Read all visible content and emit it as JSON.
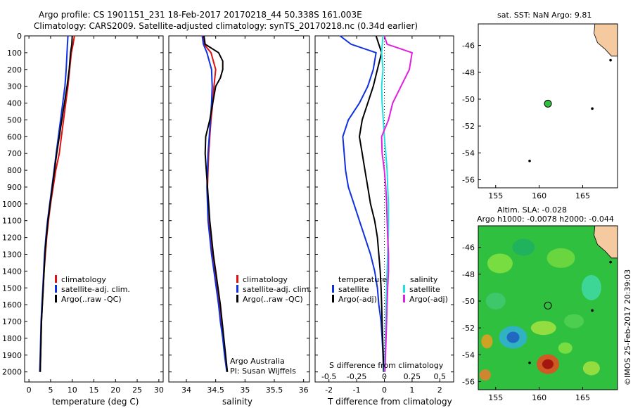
{
  "header": {
    "line1": "Argo profile: CS 1901151_231 18-Feb-2017 20170218_44 50.338S 161.003E",
    "line2": "Climatology: CARS2009. Satellite-adjusted climatology: synTS_20170218.nc (0.34d earlier)"
  },
  "colors": {
    "climatology": "#e01010",
    "satellite": "#1030e0",
    "argo": "#000000",
    "salinity_sat": "#20e0e0",
    "salinity_argo": "#e020e0",
    "land": "#f6caa0",
    "ocean_green": "#30c040"
  },
  "depth_axis": {
    "ticks": [
      "0",
      "100",
      "200",
      "300",
      "400",
      "500",
      "600",
      "700",
      "800",
      "900",
      "1000",
      "1100",
      "1200",
      "1300",
      "1400",
      "1500",
      "1600",
      "1700",
      "1800",
      "1900",
      "2000"
    ]
  },
  "chart_data": [
    {
      "type": "line",
      "xlabel": "temperature (deg C)",
      "xlim": [
        -1,
        31
      ],
      "ylim": [
        2060,
        0
      ],
      "xticks": [
        "0",
        "5",
        "10",
        "15",
        "20",
        "25",
        "30"
      ],
      "xtick_values": [
        0,
        5,
        10,
        15,
        20,
        25,
        30
      ],
      "legend": {
        "placement": "lower-middle",
        "entries": [
          "climatology",
          "satellite-adj. clim.",
          "Argo(..raw -QC)"
        ]
      },
      "series": [
        {
          "name": "climatology",
          "color": "#e01010",
          "points": [
            [
              10.5,
              0
            ],
            [
              10.2,
              50
            ],
            [
              9.8,
              100
            ],
            [
              9.4,
              200
            ],
            [
              9.0,
              300
            ],
            [
              8.5,
              400
            ],
            [
              8.0,
              500
            ],
            [
              7.5,
              600
            ],
            [
              7.0,
              700
            ],
            [
              6.2,
              800
            ],
            [
              5.6,
              900
            ],
            [
              5.0,
              1000
            ],
            [
              4.5,
              1100
            ],
            [
              4.1,
              1200
            ],
            [
              3.8,
              1300
            ],
            [
              3.5,
              1400
            ],
            [
              3.3,
              1500
            ],
            [
              3.1,
              1600
            ],
            [
              2.9,
              1700
            ],
            [
              2.8,
              1800
            ],
            [
              2.7,
              1900
            ],
            [
              2.6,
              2000
            ]
          ]
        },
        {
          "name": "satellite-adj. clim.",
          "color": "#1030e0",
          "points": [
            [
              9.0,
              0
            ],
            [
              8.9,
              50
            ],
            [
              8.8,
              100
            ],
            [
              8.6,
              200
            ],
            [
              8.3,
              300
            ],
            [
              7.8,
              400
            ],
            [
              7.3,
              500
            ],
            [
              6.8,
              600
            ],
            [
              6.3,
              700
            ],
            [
              5.8,
              800
            ],
            [
              5.3,
              900
            ],
            [
              4.8,
              1000
            ],
            [
              4.3,
              1100
            ],
            [
              3.9,
              1200
            ],
            [
              3.6,
              1300
            ],
            [
              3.4,
              1400
            ],
            [
              3.2,
              1500
            ],
            [
              3.0,
              1600
            ],
            [
              2.8,
              1700
            ],
            [
              2.7,
              1800
            ],
            [
              2.6,
              1900
            ],
            [
              2.5,
              2000
            ]
          ]
        },
        {
          "name": "Argo(..raw -QC)",
          "color": "#000000",
          "points": [
            [
              10.0,
              0
            ],
            [
              9.9,
              50
            ],
            [
              9.6,
              100
            ],
            [
              9.3,
              200
            ],
            [
              8.8,
              300
            ],
            [
              8.2,
              400
            ],
            [
              7.6,
              500
            ],
            [
              7.0,
              600
            ],
            [
              6.4,
              700
            ],
            [
              5.9,
              800
            ],
            [
              5.4,
              900
            ],
            [
              4.9,
              1000
            ],
            [
              4.4,
              1100
            ],
            [
              4.0,
              1200
            ],
            [
              3.7,
              1300
            ],
            [
              3.5,
              1400
            ],
            [
              3.3,
              1500
            ],
            [
              3.1,
              1600
            ],
            [
              2.9,
              1700
            ],
            [
              2.8,
              1800
            ],
            [
              2.7,
              1900
            ],
            [
              2.6,
              2000
            ]
          ]
        }
      ]
    },
    {
      "type": "line",
      "xlabel": "salinity",
      "xlim": [
        33.7,
        36.1
      ],
      "ylim": [
        2060,
        0
      ],
      "xticks": [
        "34",
        "34.5",
        "35",
        "35.5",
        "36"
      ],
      "xtick_values": [
        34,
        34.5,
        35,
        35.5,
        36
      ],
      "legend": {
        "placement": "lower-middle",
        "entries": [
          "climatology",
          "satellite-adj. clim.",
          "Argo(..raw -QC)"
        ]
      },
      "annotations": [
        "Argo Australia",
        "PI: Susan Wijffels"
      ],
      "series": [
        {
          "name": "climatology",
          "color": "#e01010",
          "points": [
            [
              34.29,
              0
            ],
            [
              34.3,
              50
            ],
            [
              34.42,
              100
            ],
            [
              34.5,
              200
            ],
            [
              34.47,
              300
            ],
            [
              34.45,
              400
            ],
            [
              34.42,
              500
            ],
            [
              34.4,
              600
            ],
            [
              34.38,
              700
            ],
            [
              34.37,
              800
            ],
            [
              34.36,
              900
            ],
            [
              34.37,
              1000
            ],
            [
              34.39,
              1100
            ],
            [
              34.42,
              1200
            ],
            [
              34.45,
              1300
            ],
            [
              34.49,
              1400
            ],
            [
              34.53,
              1500
            ],
            [
              34.57,
              1600
            ],
            [
              34.6,
              1700
            ],
            [
              34.63,
              1800
            ],
            [
              34.66,
              1900
            ],
            [
              34.7,
              2000
            ]
          ]
        },
        {
          "name": "satellite-adj. clim.",
          "color": "#1030e0",
          "points": [
            [
              34.27,
              0
            ],
            [
              34.29,
              50
            ],
            [
              34.35,
              100
            ],
            [
              34.43,
              200
            ],
            [
              34.44,
              300
            ],
            [
              34.43,
              400
            ],
            [
              34.41,
              500
            ],
            [
              34.39,
              600
            ],
            [
              34.37,
              700
            ],
            [
              34.36,
              800
            ],
            [
              34.35,
              900
            ],
            [
              34.36,
              1000
            ],
            [
              34.37,
              1100
            ],
            [
              34.4,
              1200
            ],
            [
              34.43,
              1300
            ],
            [
              34.47,
              1400
            ],
            [
              34.51,
              1500
            ],
            [
              34.55,
              1600
            ],
            [
              34.58,
              1700
            ],
            [
              34.62,
              1800
            ],
            [
              34.65,
              1900
            ],
            [
              34.69,
              2000
            ]
          ]
        },
        {
          "name": "Argo(..raw -QC)",
          "color": "#000000",
          "points": [
            [
              34.3,
              0
            ],
            [
              34.32,
              50
            ],
            [
              34.55,
              100
            ],
            [
              34.62,
              150
            ],
            [
              34.62,
              200
            ],
            [
              34.58,
              250
            ],
            [
              34.5,
              300
            ],
            [
              34.45,
              400
            ],
            [
              34.4,
              500
            ],
            [
              34.33,
              600
            ],
            [
              34.32,
              700
            ],
            [
              34.34,
              800
            ],
            [
              34.36,
              900
            ],
            [
              34.38,
              1000
            ],
            [
              34.4,
              1100
            ],
            [
              34.43,
              1200
            ],
            [
              34.46,
              1300
            ],
            [
              34.5,
              1400
            ],
            [
              34.54,
              1500
            ],
            [
              34.58,
              1600
            ],
            [
              34.61,
              1700
            ],
            [
              34.64,
              1800
            ],
            [
              34.67,
              1900
            ],
            [
              34.7,
              2000
            ]
          ]
        }
      ]
    },
    {
      "type": "line",
      "xlabel": "T difference from climatology",
      "xlabel_top": "S difference from climatology",
      "xlim": [
        -2.5,
        2.5
      ],
      "ylim": [
        2060,
        0
      ],
      "xticks": [
        "-2",
        "-1",
        "0",
        "1",
        "2"
      ],
      "xtick_values": [
        -2,
        -1,
        0,
        1,
        2
      ],
      "xticks_top": [
        "-0.5",
        "-0.25",
        "0",
        "0.25",
        "0.5"
      ],
      "xtick_top_values": [
        -0.5,
        -0.25,
        0,
        0.25,
        0.5
      ],
      "legend": {
        "placement": "lower-middle",
        "groups": [
          {
            "heading": "temperature",
            "entries": [
              "satellite",
              "Argo(-adj)"
            ]
          },
          {
            "heading": "salinity",
            "entries": [
              "satellite",
              "Argo(-adj)"
            ]
          }
        ]
      },
      "series": [
        {
          "name": "temperature satellite",
          "color": "#1030e0",
          "points": [
            [
              -1.6,
              0
            ],
            [
              -1.2,
              50
            ],
            [
              -0.3,
              100
            ],
            [
              -0.4,
              200
            ],
            [
              -0.6,
              300
            ],
            [
              -0.9,
              400
            ],
            [
              -1.3,
              500
            ],
            [
              -1.5,
              600
            ],
            [
              -1.45,
              700
            ],
            [
              -1.4,
              800
            ],
            [
              -1.3,
              900
            ],
            [
              -1.1,
              1000
            ],
            [
              -0.9,
              1100
            ],
            [
              -0.7,
              1200
            ],
            [
              -0.5,
              1300
            ],
            [
              -0.35,
              1400
            ],
            [
              -0.25,
              1500
            ],
            [
              -0.2,
              1600
            ],
            [
              -0.12,
              1700
            ],
            [
              -0.08,
              1800
            ],
            [
              -0.05,
              1900
            ],
            [
              -0.03,
              2000
            ]
          ]
        },
        {
          "name": "temperature Argo(-adj)",
          "color": "#000000",
          "points": [
            [
              -0.3,
              0
            ],
            [
              -0.2,
              50
            ],
            [
              -0.1,
              100
            ],
            [
              -0.25,
              200
            ],
            [
              -0.4,
              300
            ],
            [
              -0.6,
              400
            ],
            [
              -0.8,
              500
            ],
            [
              -0.9,
              600
            ],
            [
              -0.8,
              700
            ],
            [
              -0.7,
              800
            ],
            [
              -0.6,
              900
            ],
            [
              -0.5,
              1000
            ],
            [
              -0.35,
              1100
            ],
            [
              -0.25,
              1200
            ],
            [
              -0.2,
              1300
            ],
            [
              -0.15,
              1400
            ],
            [
              -0.12,
              1500
            ],
            [
              -0.1,
              1600
            ],
            [
              -0.08,
              1700
            ],
            [
              -0.06,
              1800
            ],
            [
              -0.04,
              1900
            ],
            [
              -0.02,
              2000
            ]
          ]
        },
        {
          "name": "salinity satellite",
          "color": "#20e0e0",
          "points": [
            [
              -0.05,
              0
            ],
            [
              -0.1,
              100
            ],
            [
              -0.05,
              200
            ],
            [
              -0.1,
              300
            ],
            [
              -0.08,
              400
            ],
            [
              -0.04,
              500
            ],
            [
              0.0,
              600
            ],
            [
              0.05,
              700
            ],
            [
              0.1,
              800
            ],
            [
              0.12,
              900
            ],
            [
              0.15,
              1000
            ],
            [
              0.15,
              1100
            ],
            [
              0.14,
              1200
            ],
            [
              0.12,
              1300
            ],
            [
              0.1,
              1400
            ],
            [
              0.08,
              1500
            ],
            [
              0.06,
              1600
            ],
            [
              0.05,
              1700
            ],
            [
              0.04,
              1800
            ],
            [
              0.02,
              1900
            ],
            [
              0.0,
              2000
            ]
          ]
        },
        {
          "name": "salinity Argo(-adj)",
          "color": "#e020e0",
          "points": [
            [
              0.0,
              0
            ],
            [
              0.1,
              50
            ],
            [
              1.0,
              100
            ],
            [
              0.9,
              200
            ],
            [
              0.6,
              300
            ],
            [
              0.3,
              400
            ],
            [
              0.15,
              500
            ],
            [
              -0.1,
              600
            ],
            [
              -0.08,
              700
            ],
            [
              0.0,
              800
            ],
            [
              0.05,
              900
            ],
            [
              0.08,
              1000
            ],
            [
              0.1,
              1100
            ],
            [
              0.12,
              1200
            ],
            [
              0.15,
              1300
            ],
            [
              0.15,
              1400
            ],
            [
              0.12,
              1500
            ],
            [
              0.1,
              1600
            ],
            [
              0.08,
              1700
            ],
            [
              0.06,
              1800
            ],
            [
              0.04,
              1900
            ],
            [
              0.02,
              2000
            ]
          ]
        }
      ]
    }
  ],
  "map_sst": {
    "title": "sat. SST: NaN Argo: 9.81",
    "xticks": [
      "155",
      "160",
      "165"
    ],
    "yticks": [
      "-46",
      "-48",
      "-50",
      "-52",
      "-54",
      "-56"
    ],
    "float_lon": 161.003,
    "float_lat": -50.338
  },
  "map_sla": {
    "title1": "Altim. SLA: -0.028",
    "title2": "Argo h1000: -0.0078 h2000: -0.044",
    "xticks": [
      "155",
      "160",
      "165"
    ],
    "yticks": [
      "-46",
      "-48",
      "-50",
      "-52",
      "-54",
      "-56"
    ]
  },
  "credit": "©IMOS 25-Feb-2017 20:39:03"
}
